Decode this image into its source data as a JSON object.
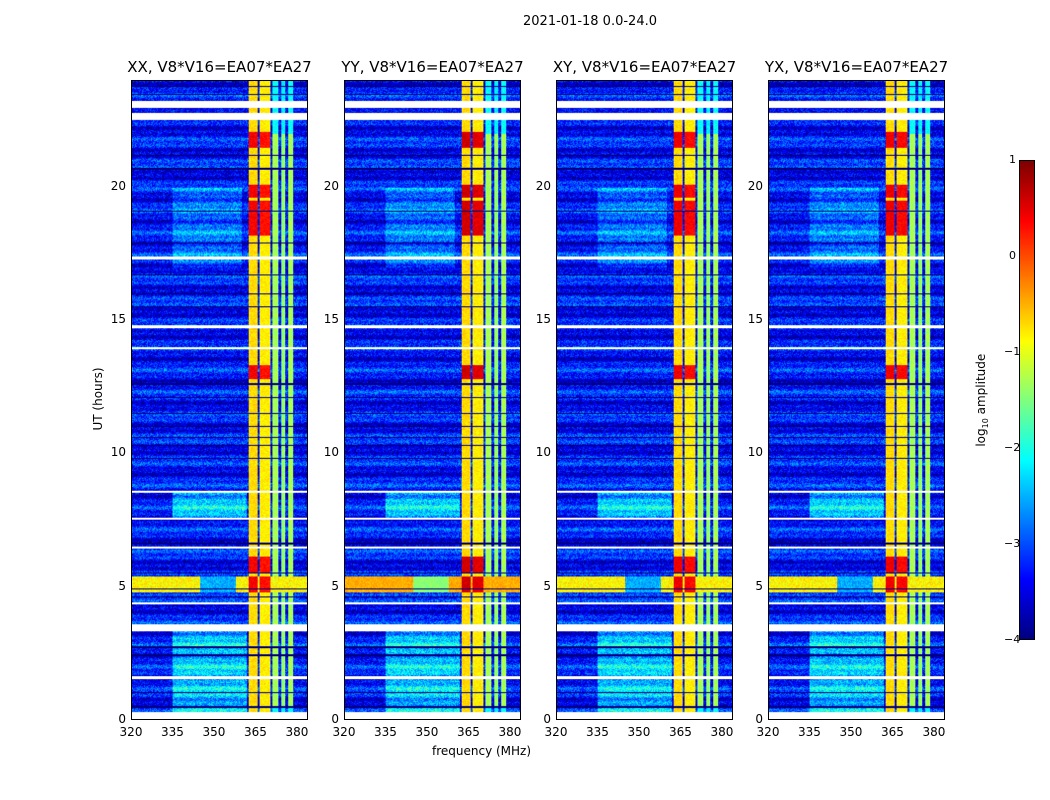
{
  "suptitle": "2021-01-18 0.0-24.0",
  "chart_data": {
    "type": "heatmap",
    "panels": [
      {
        "title": "XX, V8*V16=EA07*EA27",
        "red_gain": 0.8
      },
      {
        "title": "YY, V8*V16=EA07*EA27",
        "red_gain": 1.0
      },
      {
        "title": "XY, V8*V16=EA07*EA27",
        "red_gain": 0.85
      },
      {
        "title": "YX, V8*V16=EA07*EA27",
        "red_gain": 0.85
      }
    ],
    "xlabel": "frequency (MHz)",
    "ylabel": "UT (hours)",
    "xlim": [
      320,
      384
    ],
    "ylim": [
      0,
      24
    ],
    "xticks": [
      "320",
      "335",
      "350",
      "365",
      "380"
    ],
    "xtick_values": [
      320,
      335,
      350,
      365,
      380
    ],
    "yticks": [
      "0",
      "5",
      "10",
      "15",
      "20"
    ],
    "ytick_values": [
      0,
      5,
      10,
      15,
      20
    ],
    "background_log_amplitude": -3.3,
    "bright_channels": [
      {
        "range": [
          362.5,
          366
        ],
        "level": -0.7
      },
      {
        "range": [
          366.6,
          370.5
        ],
        "level": -0.8
      },
      {
        "range": [
          371.5,
          373.5
        ],
        "level": -1.3
      },
      {
        "range": [
          374.5,
          376.2
        ],
        "level": -1.4
      },
      {
        "range": [
          377,
          379
        ],
        "level": -1.3
      }
    ],
    "broadband_burst": {
      "time": [
        4.75,
        5.35
      ],
      "level": -0.6
    },
    "strong_rfi_times": [
      [
        4.75,
        5.35
      ],
      [
        5.5,
        6.1
      ],
      [
        18.2,
        19.5
      ],
      [
        19.6,
        20.1
      ],
      [
        12.8,
        13.3
      ],
      [
        21.5,
        22.1
      ]
    ],
    "flagged_times": [
      [
        0,
        0.25
      ],
      [
        1.5,
        1.6
      ],
      [
        3.3,
        3.55
      ],
      [
        4.3,
        4.4
      ],
      [
        6.4,
        6.5
      ],
      [
        7.5,
        7.58
      ],
      [
        8.5,
        8.6
      ],
      [
        13.9,
        14.0
      ],
      [
        14.7,
        14.82
      ],
      [
        17.3,
        17.4
      ],
      [
        22.55,
        22.8
      ],
      [
        23.0,
        23.25
      ]
    ],
    "gap_lines": [
      0.45,
      1.0,
      2.4,
      2.7,
      4.6,
      4.9,
      5.5,
      6.6,
      9.8,
      10.3,
      10.6,
      11.0,
      11.5,
      12.1,
      12.6,
      15.5,
      16.0,
      16.7,
      17.9,
      19.1,
      20.7,
      21.2,
      23.5,
      23.8
    ],
    "colorbar": {
      "label": "log10 amplitude",
      "ticks": [
        "1",
        "0",
        "−1",
        "−2",
        "−3",
        "−4"
      ],
      "tick_values": [
        1,
        0,
        -1,
        -2,
        -3,
        -4
      ],
      "range": [
        -4,
        1
      ],
      "colormap": "jet"
    }
  }
}
